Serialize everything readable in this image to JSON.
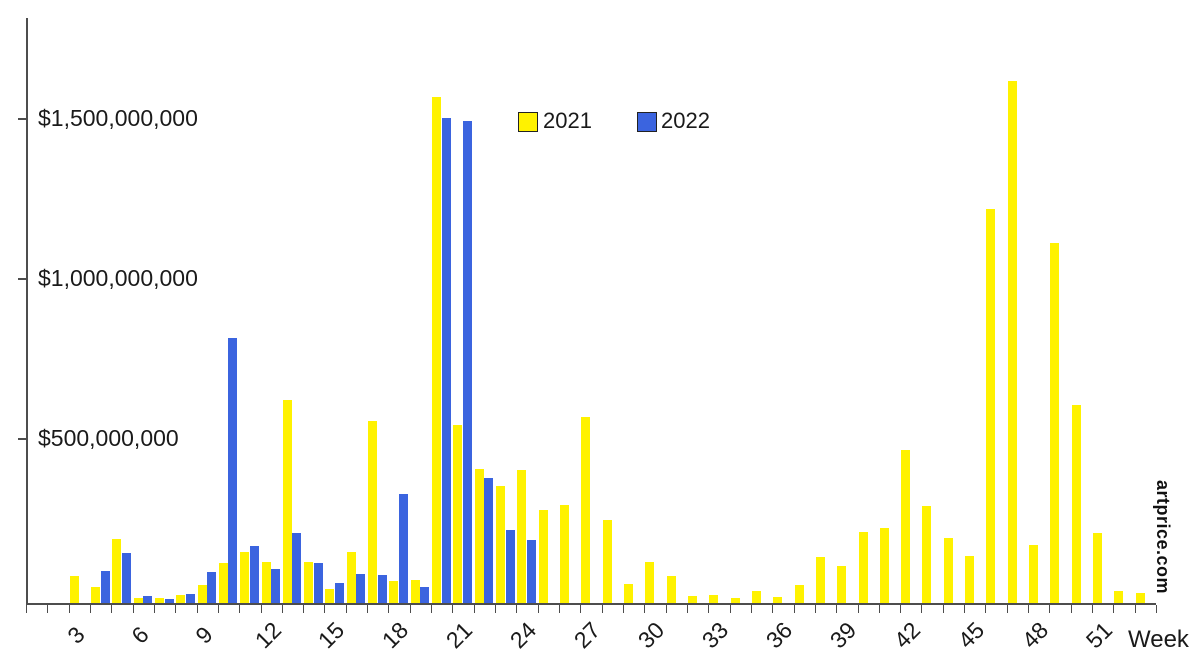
{
  "legend": {
    "items": [
      {
        "label": "2021",
        "color": "#FFF200"
      },
      {
        "label": "2022",
        "color": "#3B64DF"
      }
    ]
  },
  "y_axis": {
    "tick_labels": [
      "$1,500,000,000",
      "$1,000,000,000",
      "$500,000,000"
    ]
  },
  "x_axis": {
    "title": "Week",
    "shown_labels": [
      "3",
      "6",
      "9",
      "12",
      "15",
      "18",
      "21",
      "24",
      "27",
      "30",
      "33",
      "36",
      "39",
      "42",
      "45",
      "48",
      "51"
    ]
  },
  "watermark": "artprice.com",
  "chart_data": {
    "type": "bar",
    "title": "",
    "unit": "USD millions (weekly auction turnover)",
    "categories": [
      1,
      2,
      3,
      4,
      5,
      6,
      7,
      8,
      9,
      10,
      11,
      12,
      13,
      14,
      15,
      16,
      17,
      18,
      19,
      20,
      21,
      22,
      23,
      24,
      25,
      26,
      27,
      28,
      29,
      30,
      31,
      32,
      33,
      34,
      35,
      36,
      37,
      38,
      39,
      40,
      41,
      42,
      43,
      44,
      45,
      46,
      47,
      48,
      49,
      50,
      51,
      52,
      53
    ],
    "series": [
      {
        "name": "2021",
        "color": "#FFF200",
        "values_musd": [
          0,
          0,
          85,
          50,
          200,
          16,
          16,
          25,
          55,
          125,
          160,
          128,
          635,
          128,
          45,
          160,
          570,
          70,
          72,
          1580,
          555,
          420,
          365,
          415,
          290,
          305,
          580,
          260,
          60,
          128,
          85,
          22,
          25,
          16,
          38,
          19,
          56,
          145,
          115,
          222,
          235,
          478,
          303,
          203,
          148,
          1230,
          1630,
          182,
          1125,
          620,
          220,
          38,
          30
        ]
      },
      {
        "name": "2022",
        "color": "#3B64DF",
        "values_musd": [
          0,
          0,
          0,
          100,
          155,
          22,
          12,
          28,
          97,
          828,
          178,
          106,
          220,
          125,
          63,
          90,
          88,
          340,
          50,
          1515,
          1505,
          390,
          228,
          197,
          null,
          null,
          null,
          null,
          null,
          null,
          null,
          null,
          null,
          null,
          null,
          null,
          null,
          null,
          null,
          null,
          null,
          null,
          null,
          null,
          null,
          null,
          null,
          null,
          null,
          null,
          null,
          null,
          null
        ]
      }
    ],
    "ylim_usd": [
      0,
      1700000000
    ],
    "y_ticks_usd": [
      500000000,
      1000000000,
      1500000000
    ],
    "xlabel": "Week",
    "ylabel": "",
    "x_tick_label_every": 3,
    "grid": false,
    "legend_position": "top-center"
  }
}
